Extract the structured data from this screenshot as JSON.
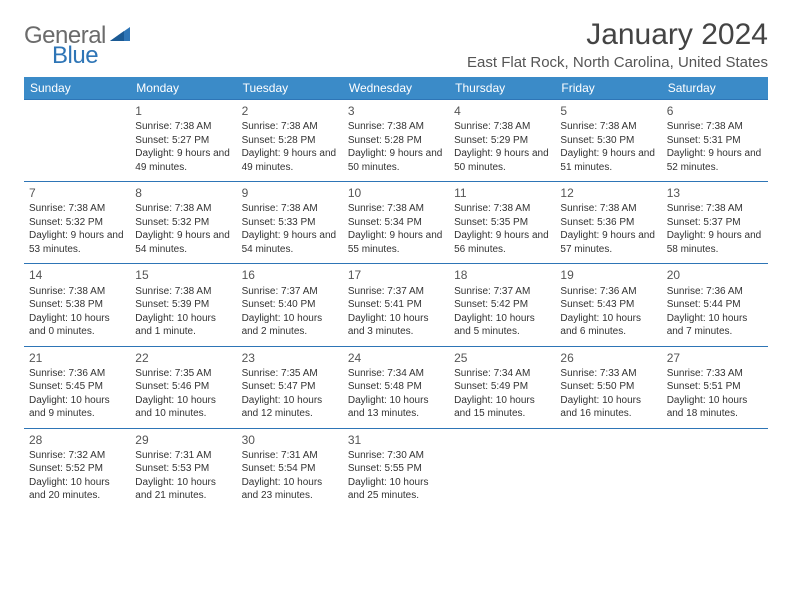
{
  "brand": {
    "word1": "General",
    "word2": "Blue"
  },
  "title": "January 2024",
  "location": "East Flat Rock, North Carolina, United States",
  "colors": {
    "header_bg": "#3b8bc8",
    "header_text": "#ffffff",
    "cell_border": "#2e75b6",
    "body_text": "#333333",
    "title_text": "#444444",
    "logo_gray": "#6b6b6b",
    "logo_blue": "#2e75b6",
    "background": "#ffffff"
  },
  "typography": {
    "title_fontsize": 30,
    "location_fontsize": 15,
    "day_header_fontsize": 12,
    "cell_fontsize": 10,
    "daynum_fontsize": 12
  },
  "day_headers": [
    "Sunday",
    "Monday",
    "Tuesday",
    "Wednesday",
    "Thursday",
    "Friday",
    "Saturday"
  ],
  "weeks": [
    [
      {
        "day": "",
        "sunrise": "",
        "sunset": "",
        "daylight": ""
      },
      {
        "day": "1",
        "sunrise": "Sunrise: 7:38 AM",
        "sunset": "Sunset: 5:27 PM",
        "daylight": "Daylight: 9 hours and 49 minutes."
      },
      {
        "day": "2",
        "sunrise": "Sunrise: 7:38 AM",
        "sunset": "Sunset: 5:28 PM",
        "daylight": "Daylight: 9 hours and 49 minutes."
      },
      {
        "day": "3",
        "sunrise": "Sunrise: 7:38 AM",
        "sunset": "Sunset: 5:28 PM",
        "daylight": "Daylight: 9 hours and 50 minutes."
      },
      {
        "day": "4",
        "sunrise": "Sunrise: 7:38 AM",
        "sunset": "Sunset: 5:29 PM",
        "daylight": "Daylight: 9 hours and 50 minutes."
      },
      {
        "day": "5",
        "sunrise": "Sunrise: 7:38 AM",
        "sunset": "Sunset: 5:30 PM",
        "daylight": "Daylight: 9 hours and 51 minutes."
      },
      {
        "day": "6",
        "sunrise": "Sunrise: 7:38 AM",
        "sunset": "Sunset: 5:31 PM",
        "daylight": "Daylight: 9 hours and 52 minutes."
      }
    ],
    [
      {
        "day": "7",
        "sunrise": "Sunrise: 7:38 AM",
        "sunset": "Sunset: 5:32 PM",
        "daylight": "Daylight: 9 hours and 53 minutes."
      },
      {
        "day": "8",
        "sunrise": "Sunrise: 7:38 AM",
        "sunset": "Sunset: 5:32 PM",
        "daylight": "Daylight: 9 hours and 54 minutes."
      },
      {
        "day": "9",
        "sunrise": "Sunrise: 7:38 AM",
        "sunset": "Sunset: 5:33 PM",
        "daylight": "Daylight: 9 hours and 54 minutes."
      },
      {
        "day": "10",
        "sunrise": "Sunrise: 7:38 AM",
        "sunset": "Sunset: 5:34 PM",
        "daylight": "Daylight: 9 hours and 55 minutes."
      },
      {
        "day": "11",
        "sunrise": "Sunrise: 7:38 AM",
        "sunset": "Sunset: 5:35 PM",
        "daylight": "Daylight: 9 hours and 56 minutes."
      },
      {
        "day": "12",
        "sunrise": "Sunrise: 7:38 AM",
        "sunset": "Sunset: 5:36 PM",
        "daylight": "Daylight: 9 hours and 57 minutes."
      },
      {
        "day": "13",
        "sunrise": "Sunrise: 7:38 AM",
        "sunset": "Sunset: 5:37 PM",
        "daylight": "Daylight: 9 hours and 58 minutes."
      }
    ],
    [
      {
        "day": "14",
        "sunrise": "Sunrise: 7:38 AM",
        "sunset": "Sunset: 5:38 PM",
        "daylight": "Daylight: 10 hours and 0 minutes."
      },
      {
        "day": "15",
        "sunrise": "Sunrise: 7:38 AM",
        "sunset": "Sunset: 5:39 PM",
        "daylight": "Daylight: 10 hours and 1 minute."
      },
      {
        "day": "16",
        "sunrise": "Sunrise: 7:37 AM",
        "sunset": "Sunset: 5:40 PM",
        "daylight": "Daylight: 10 hours and 2 minutes."
      },
      {
        "day": "17",
        "sunrise": "Sunrise: 7:37 AM",
        "sunset": "Sunset: 5:41 PM",
        "daylight": "Daylight: 10 hours and 3 minutes."
      },
      {
        "day": "18",
        "sunrise": "Sunrise: 7:37 AM",
        "sunset": "Sunset: 5:42 PM",
        "daylight": "Daylight: 10 hours and 5 minutes."
      },
      {
        "day": "19",
        "sunrise": "Sunrise: 7:36 AM",
        "sunset": "Sunset: 5:43 PM",
        "daylight": "Daylight: 10 hours and 6 minutes."
      },
      {
        "day": "20",
        "sunrise": "Sunrise: 7:36 AM",
        "sunset": "Sunset: 5:44 PM",
        "daylight": "Daylight: 10 hours and 7 minutes."
      }
    ],
    [
      {
        "day": "21",
        "sunrise": "Sunrise: 7:36 AM",
        "sunset": "Sunset: 5:45 PM",
        "daylight": "Daylight: 10 hours and 9 minutes."
      },
      {
        "day": "22",
        "sunrise": "Sunrise: 7:35 AM",
        "sunset": "Sunset: 5:46 PM",
        "daylight": "Daylight: 10 hours and 10 minutes."
      },
      {
        "day": "23",
        "sunrise": "Sunrise: 7:35 AM",
        "sunset": "Sunset: 5:47 PM",
        "daylight": "Daylight: 10 hours and 12 minutes."
      },
      {
        "day": "24",
        "sunrise": "Sunrise: 7:34 AM",
        "sunset": "Sunset: 5:48 PM",
        "daylight": "Daylight: 10 hours and 13 minutes."
      },
      {
        "day": "25",
        "sunrise": "Sunrise: 7:34 AM",
        "sunset": "Sunset: 5:49 PM",
        "daylight": "Daylight: 10 hours and 15 minutes."
      },
      {
        "day": "26",
        "sunrise": "Sunrise: 7:33 AM",
        "sunset": "Sunset: 5:50 PM",
        "daylight": "Daylight: 10 hours and 16 minutes."
      },
      {
        "day": "27",
        "sunrise": "Sunrise: 7:33 AM",
        "sunset": "Sunset: 5:51 PM",
        "daylight": "Daylight: 10 hours and 18 minutes."
      }
    ],
    [
      {
        "day": "28",
        "sunrise": "Sunrise: 7:32 AM",
        "sunset": "Sunset: 5:52 PM",
        "daylight": "Daylight: 10 hours and 20 minutes."
      },
      {
        "day": "29",
        "sunrise": "Sunrise: 7:31 AM",
        "sunset": "Sunset: 5:53 PM",
        "daylight": "Daylight: 10 hours and 21 minutes."
      },
      {
        "day": "30",
        "sunrise": "Sunrise: 7:31 AM",
        "sunset": "Sunset: 5:54 PM",
        "daylight": "Daylight: 10 hours and 23 minutes."
      },
      {
        "day": "31",
        "sunrise": "Sunrise: 7:30 AM",
        "sunset": "Sunset: 5:55 PM",
        "daylight": "Daylight: 10 hours and 25 minutes."
      },
      {
        "day": "",
        "sunrise": "",
        "sunset": "",
        "daylight": ""
      },
      {
        "day": "",
        "sunrise": "",
        "sunset": "",
        "daylight": ""
      },
      {
        "day": "",
        "sunrise": "",
        "sunset": "",
        "daylight": ""
      }
    ]
  ]
}
